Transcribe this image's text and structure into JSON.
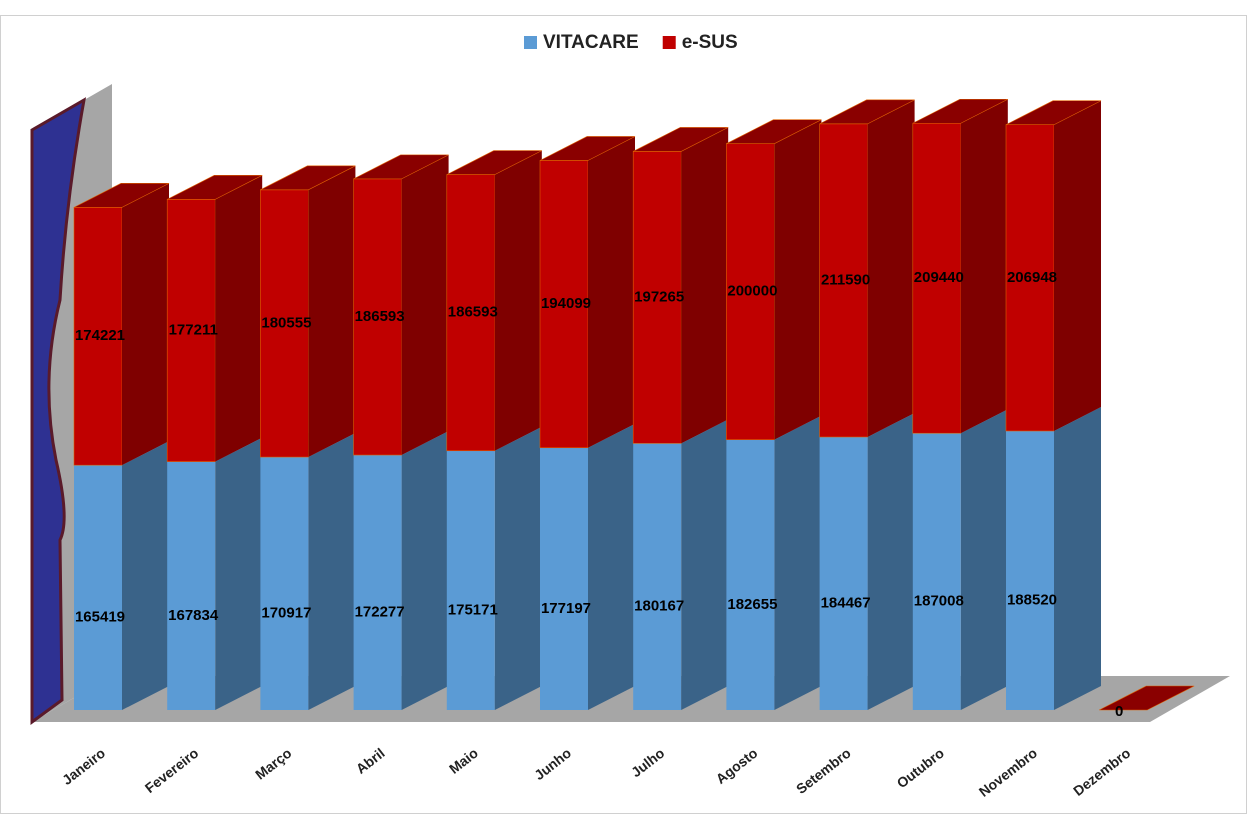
{
  "chart_data": {
    "type": "bar3d-stacked",
    "categories": [
      "Janeiro",
      "Fevereiro",
      "Março",
      "Abril",
      "Maio",
      "Junho",
      "Julho",
      "Agosto",
      "Setembro",
      "Outubro",
      "Novembro",
      "Dezembro"
    ],
    "series": [
      {
        "name": "VITACARE",
        "color": "#5b9bd5",
        "values": [
          165419,
          167834,
          170917,
          172277,
          175171,
          177197,
          180167,
          182655,
          184467,
          187008,
          188520,
          null
        ]
      },
      {
        "name": "e-SUS",
        "color": "#c00000",
        "values": [
          174221,
          177211,
          180555,
          186593,
          186593,
          194099,
          197265,
          200000,
          211590,
          209440,
          206948,
          0
        ]
      }
    ],
    "legend": "top"
  }
}
